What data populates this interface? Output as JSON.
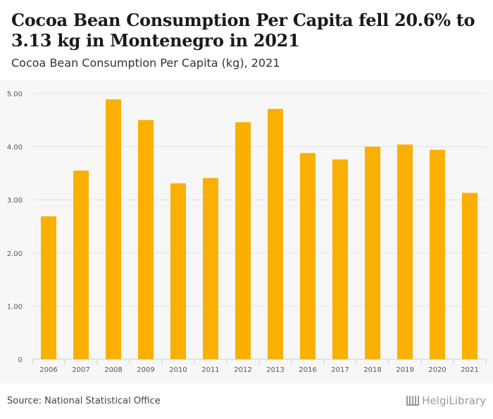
{
  "header": {
    "title": "Cocoa Bean Consumption Per Capita fell 20.6% to 3.13 kg in Montenegro in 2021",
    "subtitle": "Cocoa Bean Consumption Per Capita (kg), 2021"
  },
  "footer": {
    "source": "Source: National Statistical Office",
    "logo": "HelgiLibrary"
  },
  "colors": {
    "bar": "#F9B000",
    "grid": "#e2e2e2",
    "background": "#f7f7f7"
  },
  "chart_data": {
    "type": "bar",
    "title": "Cocoa Bean Consumption Per Capita (kg), 2021",
    "xlabel": "",
    "ylabel": "",
    "categories": [
      "2006",
      "2007",
      "2008",
      "2009",
      "2010",
      "2011",
      "2012",
      "2013",
      "2016",
      "2017",
      "2018",
      "2019",
      "2020",
      "2021"
    ],
    "values": [
      2.69,
      3.55,
      4.89,
      4.5,
      3.31,
      3.41,
      4.46,
      4.71,
      3.88,
      3.76,
      4.0,
      4.04,
      3.94,
      3.13
    ],
    "ylim": [
      0,
      5
    ],
    "yticks": [
      0,
      1,
      2,
      3,
      4,
      5
    ],
    "ytick_labels": [
      "0",
      "1.00",
      "2.00",
      "3.00",
      "4.00",
      "5.00"
    ],
    "grid": true
  }
}
